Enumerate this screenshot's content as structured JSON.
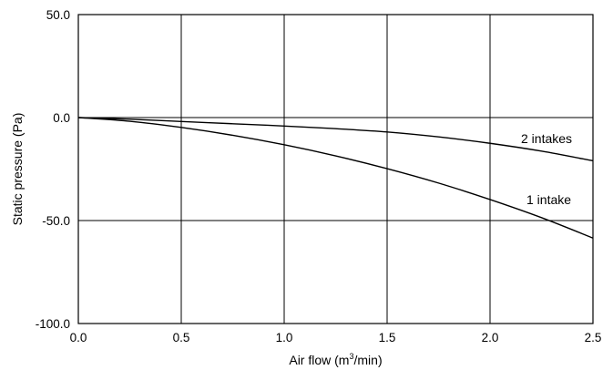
{
  "chart_data": {
    "type": "line",
    "xlabel_prefix": "Air flow (m",
    "xlabel_sup": "3",
    "xlabel_suffix": "/min)",
    "ylabel": "Static pressure (Pa)",
    "xlim": [
      0,
      2.5
    ],
    "ylim": [
      -100,
      50
    ],
    "x_ticks": [
      0.0,
      0.5,
      1.0,
      1.5,
      2.0,
      2.5
    ],
    "x_tick_labels": [
      "0.0",
      "0.5",
      "1.0",
      "1.5",
      "2.0",
      "2.5"
    ],
    "y_ticks": [
      50,
      0,
      -50,
      -100
    ],
    "y_tick_labels": [
      "50.0",
      "0.0",
      "-50.0",
      "-100.0"
    ],
    "grid": true,
    "series": [
      {
        "name": "2 intakes",
        "x": [
          0,
          0.25,
          0.5,
          0.75,
          1.0,
          1.25,
          1.5,
          1.75,
          2.0,
          2.25,
          2.5
        ],
        "y": [
          0,
          -0.8,
          -1.9,
          -3.0,
          -4.1,
          -5.4,
          -7.0,
          -9.4,
          -12.5,
          -16.3,
          -21.0
        ]
      },
      {
        "name": "1 intake",
        "x": [
          0,
          0.25,
          0.5,
          0.75,
          1.0,
          1.25,
          1.5,
          1.75,
          2.0,
          2.25,
          2.5
        ],
        "y": [
          0,
          -1.8,
          -4.8,
          -8.6,
          -13.2,
          -18.6,
          -24.8,
          -31.8,
          -39.8,
          -48.6,
          -58.5
        ]
      }
    ]
  }
}
